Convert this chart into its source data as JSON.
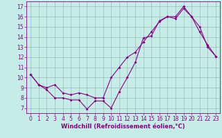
{
  "xlabel": "Windchill (Refroidissement éolien,°C)",
  "xlim": [
    -0.5,
    23.5
  ],
  "ylim": [
    6.5,
    17.5
  ],
  "xticks": [
    0,
    1,
    2,
    3,
    4,
    5,
    6,
    7,
    8,
    9,
    10,
    11,
    12,
    13,
    14,
    15,
    16,
    17,
    18,
    19,
    20,
    21,
    22,
    23
  ],
  "yticks": [
    7,
    8,
    9,
    10,
    11,
    12,
    13,
    14,
    15,
    16,
    17
  ],
  "bg_color": "#c5ece6",
  "line_color": "#880088",
  "grid_color": "#99bbbb",
  "line1_x": [
    0,
    1,
    2,
    3,
    4,
    5,
    6,
    7,
    8,
    9,
    10,
    11,
    12,
    13,
    14,
    15,
    16,
    17,
    18,
    19,
    20,
    21,
    22,
    23
  ],
  "line1_y": [
    10.3,
    9.3,
    8.8,
    8.0,
    8.0,
    7.8,
    7.8,
    6.9,
    7.7,
    7.7,
    7.0,
    8.6,
    10.0,
    11.5,
    13.9,
    14.1,
    15.6,
    16.0,
    15.8,
    16.8,
    16.0,
    14.5,
    13.2,
    12.1
  ],
  "line2_x": [
    0,
    1,
    2,
    3,
    4,
    5,
    6,
    7,
    8,
    9,
    10,
    11,
    12,
    13,
    14,
    15,
    16,
    17,
    18,
    19,
    20,
    21,
    22,
    23
  ],
  "line2_y": [
    10.3,
    9.3,
    9.0,
    9.3,
    8.5,
    8.3,
    8.5,
    8.3,
    8.0,
    8.0,
    10.0,
    11.0,
    12.0,
    12.5,
    13.5,
    14.5,
    15.5,
    16.0,
    16.0,
    17.0,
    16.0,
    15.0,
    13.0,
    12.1
  ],
  "tick_fontsize": 5.5,
  "xlabel_fontsize": 6.0,
  "marker_size": 2.0,
  "line_width": 0.8
}
